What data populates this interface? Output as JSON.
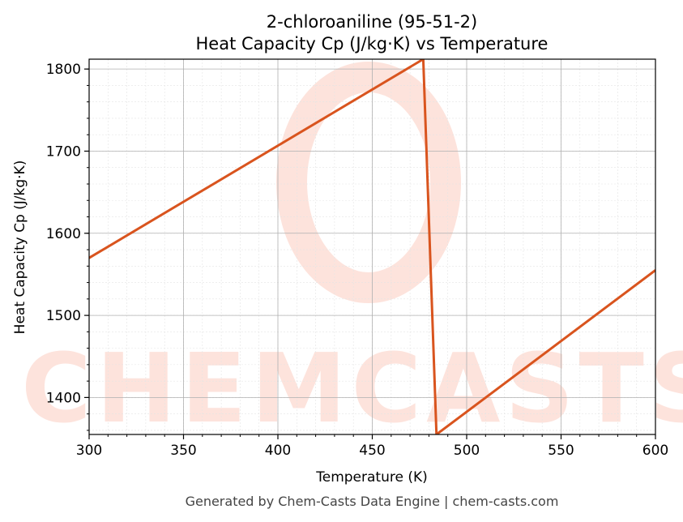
{
  "chart_data": {
    "type": "line",
    "title": "2-chloroaniline (95-51-2)",
    "subtitle": "Heat Capacity Cp (J/kg·K) vs Temperature",
    "xlabel": "Temperature (K)",
    "ylabel": "Heat Capacity Cp (J/kg·K)",
    "xlim": [
      300,
      600
    ],
    "ylim": [
      1355,
      1812
    ],
    "xticks": [
      300,
      350,
      400,
      450,
      500,
      550,
      600
    ],
    "yticks": [
      1400,
      1500,
      1600,
      1700,
      1800
    ],
    "grid": true,
    "legend": "none",
    "series": [
      {
        "color": "#d9541e",
        "x": [
          300,
          477,
          484,
          600
        ],
        "y": [
          1570,
          1812,
          1355,
          1555
        ]
      }
    ]
  },
  "watermark": {
    "text": "CHEMCASTS",
    "color": "#fde3dc"
  },
  "footer": "Generated by Chem-Casts Data Engine | chem-casts.com"
}
